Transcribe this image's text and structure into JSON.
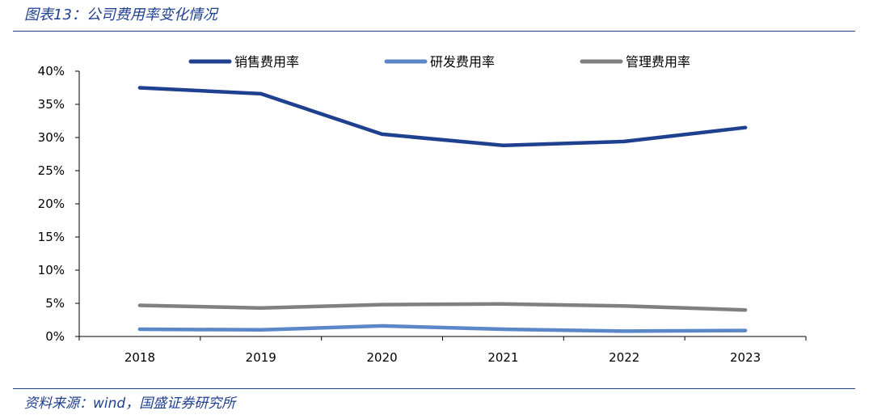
{
  "figure": {
    "title": "图表13：公司费用率变化情况",
    "source": "资料来源：wind，国盛证券研究所"
  },
  "chart_data": {
    "type": "line",
    "categories": [
      "2018",
      "2019",
      "2020",
      "2021",
      "2022",
      "2023"
    ],
    "ylim": [
      0,
      40
    ],
    "yticks": [
      "0%",
      "5%",
      "10%",
      "15%",
      "20%",
      "25%",
      "30%",
      "35%",
      "40%"
    ],
    "grid": false,
    "legend_position": "top",
    "series": [
      {
        "name": "销售费用率",
        "color": "#1f3f8f",
        "values": [
          37.5,
          36.6,
          30.5,
          28.8,
          29.4,
          31.5
        ]
      },
      {
        "name": "研发费用率",
        "color": "#5b86c8",
        "values": [
          1.1,
          1.0,
          1.6,
          1.1,
          0.8,
          0.9
        ]
      },
      {
        "name": "管理费用率",
        "color": "#808080",
        "values": [
          4.7,
          4.3,
          4.8,
          4.9,
          4.6,
          4.0
        ]
      }
    ]
  }
}
